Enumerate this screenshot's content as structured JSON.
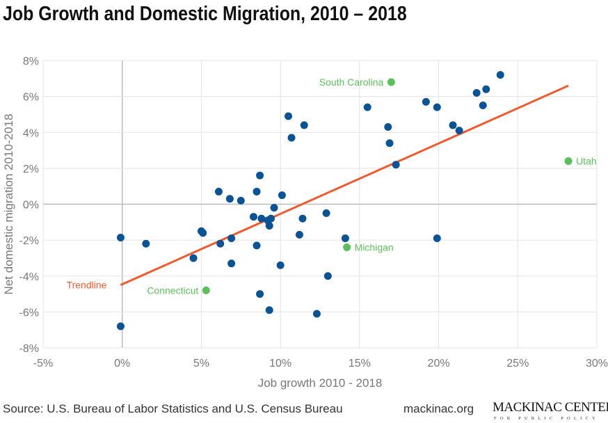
{
  "title": "Job Growth and Domestic Migration, 2010 – 2018",
  "footer": {
    "source": "Source: U.S. Bureau of Labor Statistics and U.S. Census Bureau",
    "site": "mackinac.org",
    "logo_main": "MACKINAC CENTER",
    "logo_sub": "FOR PUBLIC POLICY"
  },
  "chart_data": {
    "type": "scatter",
    "xlabel": "Job growth 2010 - 2018",
    "ylabel": "Net domestic migration 2010-2018",
    "xlim": [
      -5,
      30
    ],
    "ylim": [
      -8,
      8
    ],
    "xticks": [
      -5,
      0,
      5,
      10,
      15,
      20,
      25,
      30
    ],
    "xtick_labels": [
      "-5%",
      "0%",
      "5%",
      "10%",
      "15%",
      "20%",
      "25%",
      "30%"
    ],
    "yticks": [
      -8,
      -6,
      -4,
      -2,
      0,
      2,
      4,
      6,
      8
    ],
    "ytick_labels": [
      "-8%",
      "-6%",
      "-4%",
      "-2%",
      "0%",
      "2%",
      "4%",
      "6%",
      "8%"
    ],
    "grid": true,
    "colors": {
      "points": "#0b5394",
      "highlight": "#5cbf5c",
      "trend": "#ef5a2f"
    },
    "points": [
      [
        -0.1,
        -1.86
      ],
      [
        -0.1,
        -6.8
      ],
      [
        1.5,
        -2.2
      ],
      [
        4.5,
        -3.0
      ],
      [
        5.0,
        -1.5
      ],
      [
        5.1,
        -1.6
      ],
      [
        6.1,
        0.7
      ],
      [
        6.2,
        -2.2
      ],
      [
        6.8,
        0.3
      ],
      [
        6.9,
        -1.9
      ],
      [
        6.9,
        -3.3
      ],
      [
        7.5,
        0.2
      ],
      [
        8.3,
        -0.7
      ],
      [
        8.5,
        0.7
      ],
      [
        8.5,
        -2.3
      ],
      [
        8.7,
        1.6
      ],
      [
        8.8,
        -0.8
      ],
      [
        8.7,
        -5.0
      ],
      [
        9.2,
        -0.9
      ],
      [
        9.4,
        -0.8
      ],
      [
        9.3,
        -1.2
      ],
      [
        9.6,
        -0.2
      ],
      [
        9.3,
        -5.9
      ],
      [
        10.0,
        -3.4
      ],
      [
        10.1,
        0.5
      ],
      [
        10.5,
        4.9
      ],
      [
        10.7,
        3.7
      ],
      [
        11.2,
        -1.7
      ],
      [
        11.4,
        -0.8
      ],
      [
        11.5,
        4.4
      ],
      [
        12.3,
        -6.1
      ],
      [
        12.9,
        -0.5
      ],
      [
        13.0,
        -4.0
      ],
      [
        14.1,
        -1.9
      ],
      [
        15.5,
        5.4
      ],
      [
        16.8,
        4.3
      ],
      [
        16.9,
        3.4
      ],
      [
        17.3,
        2.2
      ],
      [
        19.2,
        5.7
      ],
      [
        19.9,
        5.4
      ],
      [
        19.9,
        -1.9
      ],
      [
        20.9,
        4.4
      ],
      [
        21.3,
        4.1
      ],
      [
        22.4,
        6.2
      ],
      [
        22.8,
        5.5
      ],
      [
        23.0,
        6.4
      ],
      [
        23.9,
        7.2
      ]
    ],
    "highlighted": [
      {
        "name": "South Carolina",
        "x": 17.0,
        "y": 6.8,
        "label_side": "left"
      },
      {
        "name": "Utah",
        "x": 28.2,
        "y": 2.4,
        "label_side": "right"
      },
      {
        "name": "Michigan",
        "x": 14.2,
        "y": -2.4,
        "label_side": "right"
      },
      {
        "name": "Connecticut",
        "x": 5.3,
        "y": -4.8,
        "label_side": "left"
      }
    ],
    "trendline": {
      "label": "Trendline",
      "x": [
        -0.1,
        28.2
      ],
      "y": [
        -4.5,
        6.6
      ]
    }
  }
}
